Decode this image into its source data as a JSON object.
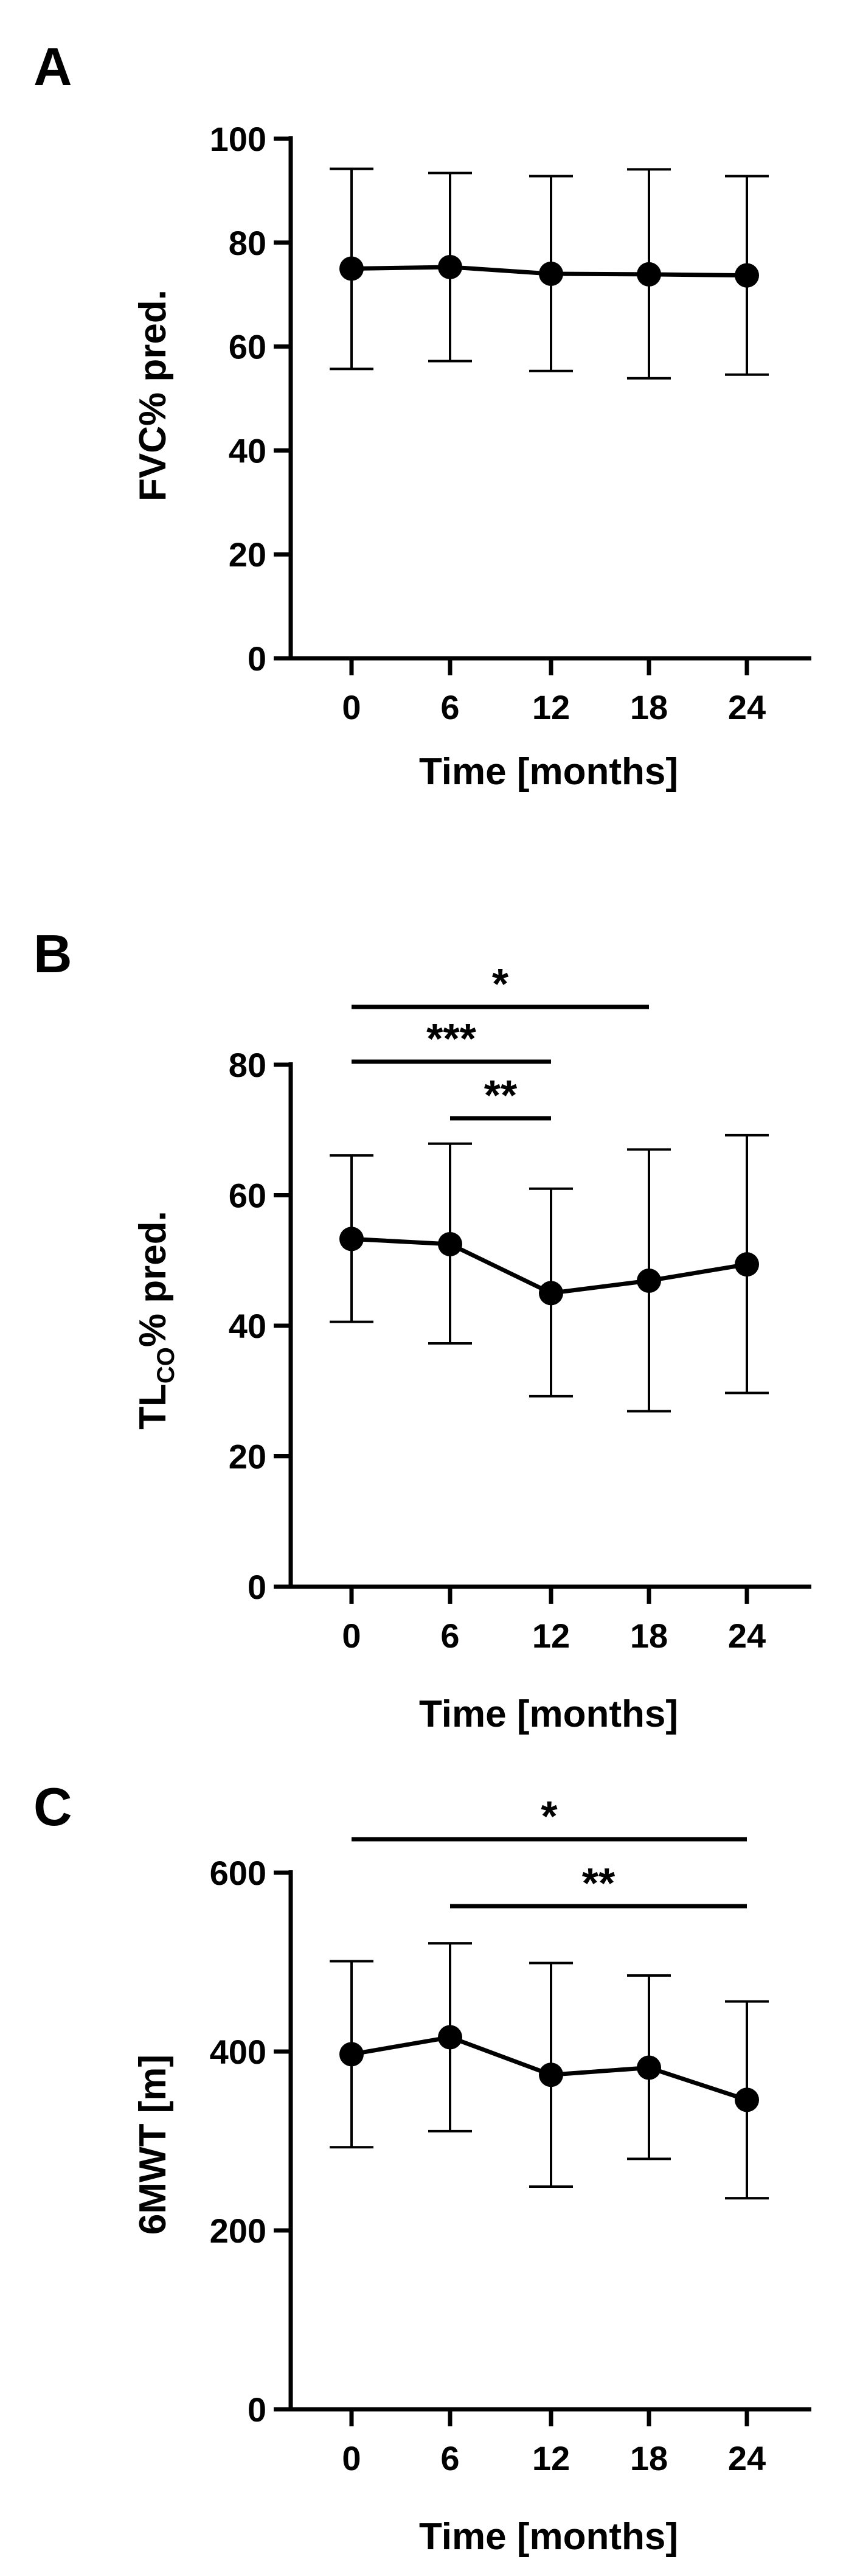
{
  "chart_data": [
    {
      "type": "line",
      "panel": "A",
      "x": [
        "0",
        "6",
        "12",
        "18",
        "24"
      ],
      "xlabel": "Time  [months]",
      "ylabel": "FVC% pred.",
      "ylim": [
        0,
        100
      ],
      "yticks": [
        0,
        20,
        40,
        60,
        80,
        100
      ],
      "series": [
        {
          "values": [
            75.0,
            75.3,
            74.0,
            73.9,
            73.7
          ],
          "err_low": [
            55.7,
            57.2,
            55.3,
            53.9,
            54.6
          ],
          "err_high": [
            94.2,
            93.4,
            92.8,
            94.1,
            92.8
          ]
        }
      ],
      "significance": [],
      "colors": {
        "line": "#000000"
      }
    },
    {
      "type": "line",
      "panel": "B",
      "x": [
        "0",
        "6",
        "12",
        "18",
        "24"
      ],
      "xlabel": "Time  [months]",
      "ylabel_main": "TL",
      "ylabel_sub": "CO",
      "ylabel_rest": "% pred.",
      "ylim": [
        0,
        80
      ],
      "yticks": [
        0,
        20,
        40,
        60,
        80
      ],
      "series": [
        {
          "values": [
            53.3,
            52.5,
            45.0,
            46.9,
            49.4
          ],
          "err_low": [
            40.6,
            37.3,
            29.2,
            26.9,
            29.7
          ],
          "err_high": [
            66.1,
            67.9,
            61.0,
            67.0,
            69.2
          ]
        }
      ],
      "significance": [
        {
          "from": 0,
          "to": 3,
          "label": "*"
        },
        {
          "from": 0,
          "to": 2,
          "label": "***"
        },
        {
          "from": 1,
          "to": 2,
          "label": "**"
        }
      ],
      "colors": {
        "line": "#000000"
      }
    },
    {
      "type": "line",
      "panel": "C",
      "x": [
        "0",
        "6",
        "12",
        "18",
        "24"
      ],
      "xlabel": "Time  [months]",
      "ylabel": "6MWT [m]",
      "ylim": [
        0,
        600
      ],
      "yticks": [
        0,
        200,
        400,
        600
      ],
      "series": [
        {
          "values": [
            397,
            416,
            374,
            382,
            346
          ],
          "err_low": [
            293,
            311,
            249,
            280,
            236
          ],
          "err_high": [
            501,
            521,
            499,
            485,
            456
          ]
        }
      ],
      "significance": [
        {
          "from": 0,
          "to": 4,
          "label": "*"
        },
        {
          "from": 1,
          "to": 4,
          "label": "**"
        }
      ],
      "colors": {
        "line": "#000000"
      }
    }
  ]
}
